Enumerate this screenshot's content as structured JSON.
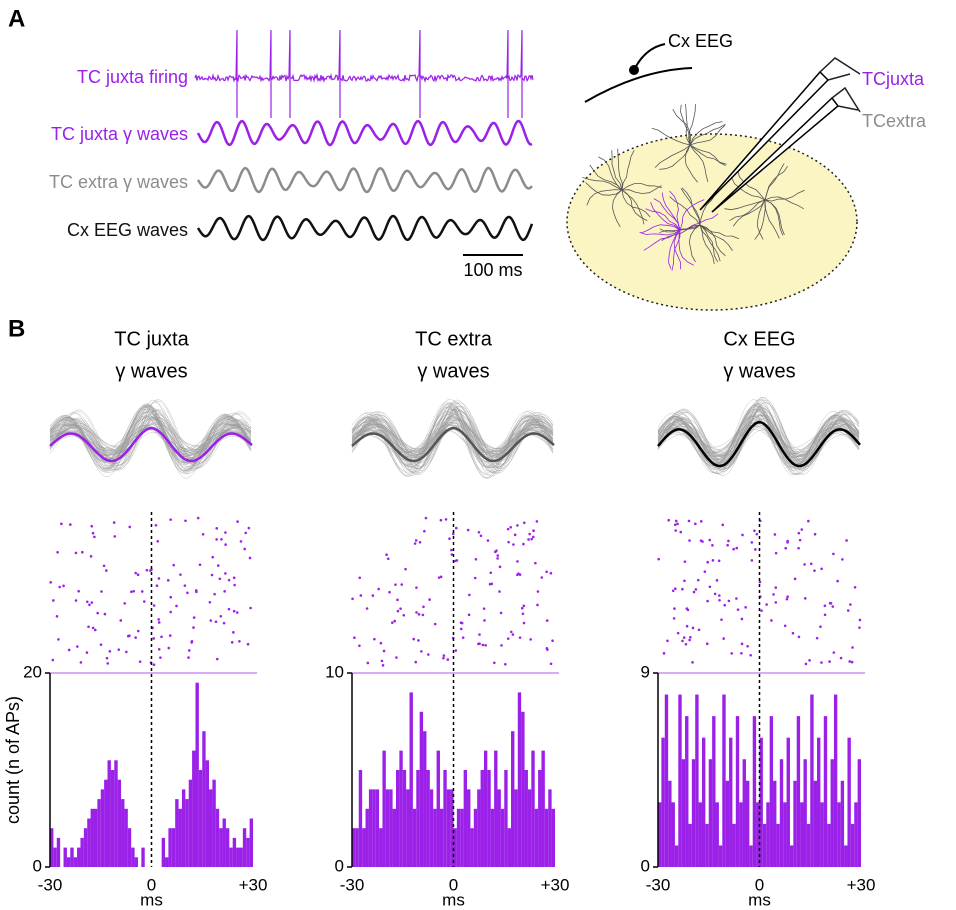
{
  "panel_a": {
    "label": "A",
    "traces": [
      {
        "label": "TC juxta firing",
        "color": "#9b20e8"
      },
      {
        "label": "TC juxta γ waves",
        "color": "#9b20e8"
      },
      {
        "label": "TC extra γ waves",
        "color": "#8c8c8c"
      },
      {
        "label": "Cx EEG waves",
        "color": "#111111"
      }
    ],
    "scale_bar": "100 ms",
    "diagram": {
      "eeg": "Cx EEG",
      "juxta": "TCjuxta",
      "extra": "TCextra"
    }
  },
  "panel_b": {
    "label": "B"
  },
  "chart_data": [
    {
      "type": "histogram",
      "title": "TC juxta",
      "subtitle": "γ waves",
      "color": "#9b20e8",
      "mean_color": "#9b20e8",
      "bins": [
        -30,
        -29,
        -28,
        -27,
        -26,
        -25,
        -24,
        -23,
        -22,
        -21,
        -20,
        -19,
        -18,
        -17,
        -16,
        -15,
        -14,
        -13,
        -12,
        -11,
        -10,
        -9,
        -8,
        -7,
        -6,
        -5,
        -4,
        -3,
        -2,
        -1,
        0,
        1,
        2,
        3,
        4,
        5,
        6,
        7,
        8,
        9,
        10,
        11,
        12,
        13,
        14,
        15,
        16,
        17,
        18,
        19,
        20,
        21,
        22,
        23,
        24,
        25,
        26,
        27,
        28,
        29,
        30
      ],
      "values": [
        4,
        2,
        3,
        0,
        2,
        1,
        2,
        1,
        2,
        3,
        4,
        5,
        6,
        6,
        7,
        8,
        9,
        11,
        10,
        11,
        9,
        7,
        6,
        4,
        2,
        1,
        0,
        2,
        0,
        0,
        0,
        0,
        0,
        3,
        1,
        4,
        4,
        7,
        6,
        8,
        7,
        9,
        12,
        19,
        10,
        14,
        11,
        8,
        9,
        6,
        4,
        5,
        4,
        2,
        3,
        2,
        2,
        4,
        3,
        5
      ],
      "xlim": [
        -30,
        30
      ],
      "ylim": [
        0,
        20
      ],
      "xticks": [
        -30,
        0,
        {
          "value": 30,
          "label": "+30"
        }
      ],
      "yticks": [
        0,
        20
      ],
      "xlabel": "ms",
      "ylabel": "count (n of APs)"
    },
    {
      "type": "histogram",
      "title": "TC extra",
      "subtitle": "γ waves",
      "color": "#9b20e8",
      "mean_color": "#555555",
      "bins": [
        -30,
        -29,
        -28,
        -27,
        -26,
        -25,
        -24,
        -23,
        -22,
        -21,
        -20,
        -19,
        -18,
        -17,
        -16,
        -15,
        -14,
        -13,
        -12,
        -11,
        -10,
        -9,
        -8,
        -7,
        -6,
        -5,
        -4,
        -3,
        -2,
        -1,
        0,
        1,
        2,
        3,
        4,
        5,
        6,
        7,
        8,
        9,
        10,
        11,
        12,
        13,
        14,
        15,
        16,
        17,
        18,
        19,
        20,
        21,
        22,
        23,
        24,
        25,
        26,
        27,
        28,
        29,
        30
      ],
      "values": [
        2,
        2,
        5,
        2,
        3,
        4,
        4,
        4,
        2,
        6,
        4,
        4,
        3,
        5,
        6,
        5,
        4,
        9,
        3,
        5,
        8,
        7,
        5,
        4,
        3,
        6,
        3,
        5,
        4,
        4,
        2,
        3,
        3,
        5,
        4,
        2,
        3,
        4,
        5,
        6,
        5,
        3,
        6,
        4,
        3,
        5,
        2,
        7,
        4,
        9,
        8,
        5,
        4,
        6,
        3,
        5,
        6,
        3,
        4,
        3
      ],
      "xlim": [
        -30,
        30
      ],
      "ylim": [
        0,
        10
      ],
      "xticks": [
        -30,
        0,
        {
          "value": 30,
          "label": "+30"
        }
      ],
      "yticks": [
        0,
        10
      ],
      "xlabel": "ms"
    },
    {
      "type": "histogram",
      "title": "Cx EEG",
      "subtitle": "γ waves",
      "color": "#9b20e8",
      "mean_color": "#000000",
      "bins": [
        -30,
        -29,
        -28,
        -27,
        -26,
        -25,
        -24,
        -23,
        -22,
        -21,
        -20,
        -19,
        -18,
        -17,
        -16,
        -15,
        -14,
        -13,
        -12,
        -11,
        -10,
        -9,
        -8,
        -7,
        -6,
        -5,
        -4,
        -3,
        -2,
        -1,
        0,
        1,
        2,
        3,
        4,
        5,
        6,
        7,
        8,
        9,
        10,
        11,
        12,
        13,
        14,
        15,
        16,
        17,
        18,
        19,
        20,
        21,
        22,
        23,
        24,
        25,
        26,
        27,
        28,
        29,
        30
      ],
      "values": [
        3,
        6,
        8,
        4,
        3,
        1,
        8,
        5,
        7,
        2,
        5,
        8,
        3,
        6,
        2,
        5,
        7,
        3,
        1,
        8,
        4,
        6,
        2,
        7,
        3,
        5,
        4,
        1,
        7,
        3,
        6,
        2,
        3,
        7,
        4,
        2,
        5,
        3,
        6,
        1,
        4,
        7,
        3,
        5,
        2,
        8,
        4,
        6,
        3,
        7,
        2,
        5,
        8,
        3,
        4,
        1,
        6,
        2,
        3,
        5
      ],
      "xlim": [
        -30,
        30
      ],
      "ylim": [
        0,
        9
      ],
      "xticks": [
        -30,
        0,
        {
          "value": 30,
          "label": "+30"
        }
      ],
      "yticks": [
        0,
        9
      ],
      "xlabel": "ms"
    }
  ]
}
